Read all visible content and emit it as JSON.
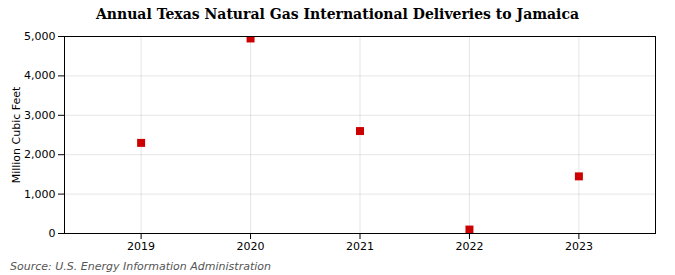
{
  "chart_data": {
    "type": "scatter",
    "title": "Annual Texas Natural Gas International Deliveries to Jamaica",
    "ylabel": "Million Cubic Feet",
    "caption": "Source: U.S. Energy Information Administration",
    "x": [
      2019,
      2020,
      2021,
      2022,
      2023
    ],
    "values": [
      2300,
      4950,
      2600,
      100,
      1450
    ],
    "color": "#cc0000",
    "marker": "square",
    "xlim": [
      2018.3,
      2023.7
    ],
    "xticks": [
      2019,
      2020,
      2021,
      2022,
      2023
    ],
    "ylim": [
      0,
      5000
    ],
    "yticks": [
      0,
      {
        "value": 1000,
        "label": "1,000"
      },
      {
        "value": 2000,
        "label": "2,000"
      },
      {
        "value": 3000,
        "label": "3,000"
      },
      {
        "value": 4000,
        "label": "4,000"
      },
      {
        "value": 5000,
        "label": "5,000"
      }
    ],
    "grid": true
  }
}
